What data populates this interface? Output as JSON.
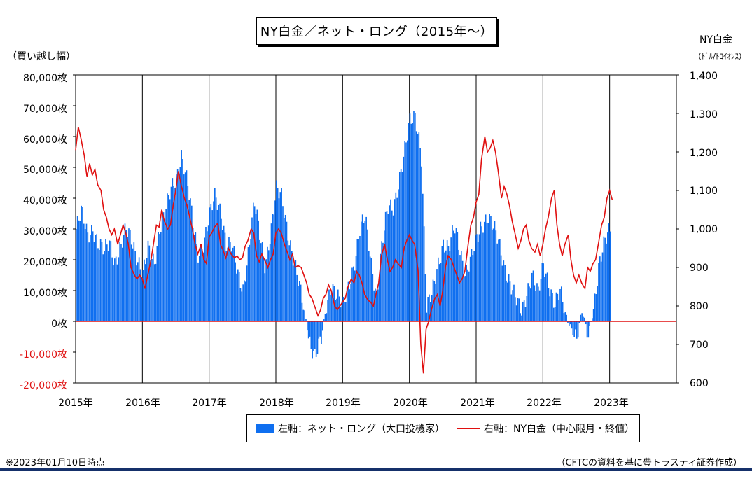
{
  "chart_data": {
    "type": "bar",
    "title": "NY白金／ネット・ロング（2015年～）",
    "left_axis": {
      "label": "（買い越し幅）",
      "ylim": [
        -20000,
        80000
      ],
      "ticks": [
        "80,000枚",
        "70,000枚",
        "60,000枚",
        "50,000枚",
        "40,000枚",
        "30,000枚",
        "20,000枚",
        "10,000枚",
        "0枚",
        "-10,000枚",
        "-20,000枚"
      ],
      "negative_tick_color": "#e01010"
    },
    "right_axis": {
      "label_line1": "NY白金",
      "label_line2": "（ﾄﾞﾙ/ﾄﾛｲｵﾝｽ）",
      "ylim": [
        600,
        1400
      ],
      "ticks": [
        "1,400",
        "1,300",
        "1,200",
        "1,100",
        "1,000",
        "900",
        "800",
        "700",
        "600"
      ]
    },
    "x_axis": {
      "labels": [
        "2015年",
        "2016年",
        "2017年",
        "2018年",
        "2019年",
        "2020年",
        "2021年",
        "2022年",
        "2023年"
      ],
      "xlim": [
        2015.0,
        2024.0
      ],
      "grid": "vertical lines at each year"
    },
    "series": [
      {
        "name": "左軸：ネット・ロング（大口投機家）",
        "kind": "bar",
        "axis": "left",
        "color": "#0f6ff0",
        "points": [
          [
            2015.0,
            30000
          ],
          [
            2015.08,
            35000
          ],
          [
            2015.17,
            28000
          ],
          [
            2015.25,
            31000
          ],
          [
            2015.33,
            25000
          ],
          [
            2015.42,
            22000
          ],
          [
            2015.5,
            26000
          ],
          [
            2015.58,
            20000
          ],
          [
            2015.67,
            24000
          ],
          [
            2015.75,
            29000
          ],
          [
            2015.83,
            27000
          ],
          [
            2015.92,
            21000
          ],
          [
            2016.0,
            15000
          ],
          [
            2016.08,
            23000
          ],
          [
            2016.17,
            19000
          ],
          [
            2016.25,
            31000
          ],
          [
            2016.33,
            35000
          ],
          [
            2016.42,
            42000
          ],
          [
            2016.5,
            47000
          ],
          [
            2016.58,
            55000
          ],
          [
            2016.67,
            44000
          ],
          [
            2016.75,
            31000
          ],
          [
            2016.83,
            22000
          ],
          [
            2016.92,
            27000
          ],
          [
            2017.0,
            34000
          ],
          [
            2017.08,
            40000
          ],
          [
            2017.17,
            36000
          ],
          [
            2017.25,
            26000
          ],
          [
            2017.33,
            24000
          ],
          [
            2017.42,
            15000
          ],
          [
            2017.5,
            11000
          ],
          [
            2017.58,
            23000
          ],
          [
            2017.67,
            38000
          ],
          [
            2017.75,
            28000
          ],
          [
            2017.83,
            19000
          ],
          [
            2017.92,
            30000
          ],
          [
            2018.0,
            42000
          ],
          [
            2018.08,
            40000
          ],
          [
            2018.17,
            30000
          ],
          [
            2018.25,
            21000
          ],
          [
            2018.33,
            12000
          ],
          [
            2018.42,
            3000
          ],
          [
            2018.5,
            -6000
          ],
          [
            2018.58,
            -11000
          ],
          [
            2018.67,
            -7000
          ],
          [
            2018.75,
            5000
          ],
          [
            2018.83,
            13000
          ],
          [
            2018.92,
            8000
          ],
          [
            2019.0,
            4000
          ],
          [
            2019.08,
            11000
          ],
          [
            2019.17,
            20000
          ],
          [
            2019.25,
            30000
          ],
          [
            2019.33,
            33000
          ],
          [
            2019.42,
            19000
          ],
          [
            2019.5,
            9000
          ],
          [
            2019.58,
            25000
          ],
          [
            2019.67,
            36000
          ],
          [
            2019.75,
            37000
          ],
          [
            2019.83,
            46000
          ],
          [
            2019.92,
            55000
          ],
          [
            2020.0,
            64000
          ],
          [
            2020.08,
            67000
          ],
          [
            2020.17,
            56000
          ],
          [
            2020.25,
            4000
          ],
          [
            2020.33,
            8000
          ],
          [
            2020.42,
            19000
          ],
          [
            2020.5,
            26000
          ],
          [
            2020.58,
            23000
          ],
          [
            2020.67,
            30000
          ],
          [
            2020.75,
            24000
          ],
          [
            2020.83,
            16000
          ],
          [
            2020.92,
            20000
          ],
          [
            2021.0,
            26000
          ],
          [
            2021.08,
            32000
          ],
          [
            2021.17,
            35000
          ],
          [
            2021.25,
            30000
          ],
          [
            2021.33,
            25000
          ],
          [
            2021.42,
            18000
          ],
          [
            2021.5,
            13000
          ],
          [
            2021.58,
            7000
          ],
          [
            2021.67,
            2000
          ],
          [
            2021.75,
            10000
          ],
          [
            2021.83,
            16000
          ],
          [
            2021.92,
            8000
          ],
          [
            2022.0,
            18000
          ],
          [
            2022.08,
            13000
          ],
          [
            2022.17,
            6000
          ],
          [
            2022.25,
            9000
          ],
          [
            2022.33,
            2000
          ],
          [
            2022.42,
            -2000
          ],
          [
            2022.5,
            -5000
          ],
          [
            2022.58,
            3000
          ],
          [
            2022.67,
            -5000
          ],
          [
            2022.75,
            5000
          ],
          [
            2022.83,
            18000
          ],
          [
            2022.92,
            25000
          ],
          [
            2023.0,
            30000
          ]
        ]
      },
      {
        "name": "右軸：NY白金（中心限月・終値）",
        "kind": "line",
        "axis": "right",
        "color": "#e01010",
        "points": [
          [
            2015.0,
            1205
          ],
          [
            2015.04,
            1265
          ],
          [
            2015.08,
            1235
          ],
          [
            2015.13,
            1190
          ],
          [
            2015.17,
            1135
          ],
          [
            2015.21,
            1170
          ],
          [
            2015.25,
            1140
          ],
          [
            2015.29,
            1155
          ],
          [
            2015.33,
            1115
          ],
          [
            2015.38,
            1100
          ],
          [
            2015.42,
            1050
          ],
          [
            2015.46,
            1030
          ],
          [
            2015.5,
            1000
          ],
          [
            2015.54,
            985
          ],
          [
            2015.58,
            1000
          ],
          [
            2015.63,
            960
          ],
          [
            2015.67,
            985
          ],
          [
            2015.71,
            1010
          ],
          [
            2015.75,
            990
          ],
          [
            2015.79,
            960
          ],
          [
            2015.83,
            900
          ],
          [
            2015.88,
            880
          ],
          [
            2015.92,
            870
          ],
          [
            2015.96,
            880
          ],
          [
            2016.0,
            870
          ],
          [
            2016.04,
            845
          ],
          [
            2016.08,
            880
          ],
          [
            2016.13,
            920
          ],
          [
            2016.17,
            965
          ],
          [
            2016.21,
            1010
          ],
          [
            2016.25,
            1005
          ],
          [
            2016.29,
            1050
          ],
          [
            2016.33,
            1020
          ],
          [
            2016.38,
            1000
          ],
          [
            2016.42,
            1010
          ],
          [
            2016.46,
            1060
          ],
          [
            2016.5,
            1100
          ],
          [
            2016.54,
            1150
          ],
          [
            2016.58,
            1115
          ],
          [
            2016.63,
            1080
          ],
          [
            2016.67,
            1060
          ],
          [
            2016.71,
            1030
          ],
          [
            2016.75,
            1000
          ],
          [
            2016.79,
            960
          ],
          [
            2016.83,
            935
          ],
          [
            2016.88,
            960
          ],
          [
            2016.92,
            920
          ],
          [
            2016.96,
            910
          ],
          [
            2017.0,
            980
          ],
          [
            2017.04,
            990
          ],
          [
            2017.08,
            1005
          ],
          [
            2017.13,
            1015
          ],
          [
            2017.17,
            960
          ],
          [
            2017.21,
            945
          ],
          [
            2017.25,
            925
          ],
          [
            2017.29,
            950
          ],
          [
            2017.33,
            935
          ],
          [
            2017.38,
            925
          ],
          [
            2017.42,
            930
          ],
          [
            2017.46,
            920
          ],
          [
            2017.5,
            925
          ],
          [
            2017.54,
            955
          ],
          [
            2017.58,
            970
          ],
          [
            2017.63,
            1000
          ],
          [
            2017.67,
            990
          ],
          [
            2017.71,
            930
          ],
          [
            2017.75,
            915
          ],
          [
            2017.79,
            935
          ],
          [
            2017.83,
            920
          ],
          [
            2017.88,
            900
          ],
          [
            2017.92,
            920
          ],
          [
            2017.96,
            935
          ],
          [
            2018.0,
            990
          ],
          [
            2018.04,
            1000
          ],
          [
            2018.08,
            990
          ],
          [
            2018.13,
            960
          ],
          [
            2018.17,
            940
          ],
          [
            2018.21,
            920
          ],
          [
            2018.25,
            935
          ],
          [
            2018.29,
            900
          ],
          [
            2018.33,
            905
          ],
          [
            2018.38,
            900
          ],
          [
            2018.42,
            880
          ],
          [
            2018.46,
            860
          ],
          [
            2018.5,
            830
          ],
          [
            2018.54,
            820
          ],
          [
            2018.58,
            800
          ],
          [
            2018.63,
            775
          ],
          [
            2018.67,
            790
          ],
          [
            2018.71,
            820
          ],
          [
            2018.75,
            830
          ],
          [
            2018.79,
            855
          ],
          [
            2018.83,
            840
          ],
          [
            2018.88,
            800
          ],
          [
            2018.92,
            790
          ],
          [
            2018.96,
            800
          ],
          [
            2019.0,
            810
          ],
          [
            2019.04,
            820
          ],
          [
            2019.08,
            850
          ],
          [
            2019.13,
            870
          ],
          [
            2019.17,
            860
          ],
          [
            2019.21,
            890
          ],
          [
            2019.25,
            880
          ],
          [
            2019.29,
            860
          ],
          [
            2019.33,
            830
          ],
          [
            2019.38,
            815
          ],
          [
            2019.42,
            810
          ],
          [
            2019.46,
            800
          ],
          [
            2019.5,
            830
          ],
          [
            2019.54,
            860
          ],
          [
            2019.58,
            930
          ],
          [
            2019.63,
            960
          ],
          [
            2019.67,
            920
          ],
          [
            2019.71,
            890
          ],
          [
            2019.75,
            900
          ],
          [
            2019.79,
            920
          ],
          [
            2019.83,
            910
          ],
          [
            2019.88,
            900
          ],
          [
            2019.92,
            950
          ],
          [
            2019.96,
            970
          ],
          [
            2020.0,
            985
          ],
          [
            2020.04,
            970
          ],
          [
            2020.08,
            960
          ],
          [
            2020.13,
            890
          ],
          [
            2020.17,
            700
          ],
          [
            2020.21,
            625
          ],
          [
            2020.25,
            740
          ],
          [
            2020.29,
            760
          ],
          [
            2020.33,
            790
          ],
          [
            2020.38,
            820
          ],
          [
            2020.42,
            830
          ],
          [
            2020.46,
            800
          ],
          [
            2020.5,
            840
          ],
          [
            2020.54,
            900
          ],
          [
            2020.58,
            930
          ],
          [
            2020.63,
            920
          ],
          [
            2020.67,
            900
          ],
          [
            2020.71,
            880
          ],
          [
            2020.75,
            860
          ],
          [
            2020.79,
            870
          ],
          [
            2020.83,
            890
          ],
          [
            2020.88,
            960
          ],
          [
            2020.92,
            1010
          ],
          [
            2020.96,
            1030
          ],
          [
            2021.0,
            1070
          ],
          [
            2021.04,
            1090
          ],
          [
            2021.08,
            1180
          ],
          [
            2021.13,
            1240
          ],
          [
            2021.17,
            1200
          ],
          [
            2021.21,
            1210
          ],
          [
            2021.25,
            1230
          ],
          [
            2021.29,
            1200
          ],
          [
            2021.33,
            1150
          ],
          [
            2021.38,
            1080
          ],
          [
            2021.42,
            1110
          ],
          [
            2021.46,
            1090
          ],
          [
            2021.5,
            1060
          ],
          [
            2021.54,
            1020
          ],
          [
            2021.58,
            990
          ],
          [
            2021.63,
            950
          ],
          [
            2021.67,
            970
          ],
          [
            2021.71,
            1000
          ],
          [
            2021.75,
            1010
          ],
          [
            2021.79,
            970
          ],
          [
            2021.83,
            950
          ],
          [
            2021.88,
            940
          ],
          [
            2021.92,
            960
          ],
          [
            2021.96,
            930
          ],
          [
            2022.0,
            960
          ],
          [
            2022.04,
            1000
          ],
          [
            2022.08,
            1030
          ],
          [
            2022.13,
            1080
          ],
          [
            2022.17,
            1100
          ],
          [
            2022.21,
            1010
          ],
          [
            2022.25,
            960
          ],
          [
            2022.29,
            930
          ],
          [
            2022.33,
            960
          ],
          [
            2022.38,
            985
          ],
          [
            2022.42,
            920
          ],
          [
            2022.46,
            880
          ],
          [
            2022.5,
            860
          ],
          [
            2022.54,
            880
          ],
          [
            2022.58,
            860
          ],
          [
            2022.63,
            845
          ],
          [
            2022.67,
            900
          ],
          [
            2022.71,
            890
          ],
          [
            2022.75,
            910
          ],
          [
            2022.79,
            920
          ],
          [
            2022.83,
            960
          ],
          [
            2022.88,
            1010
          ],
          [
            2022.92,
            1030
          ],
          [
            2022.96,
            1080
          ],
          [
            2023.0,
            1100
          ],
          [
            2023.04,
            1075
          ]
        ]
      }
    ],
    "legend_position": "bottom-center"
  },
  "footnote": "※2023年01月10日時点",
  "source": "（CFTCの資料を基に豊トラスティ証券作成）"
}
